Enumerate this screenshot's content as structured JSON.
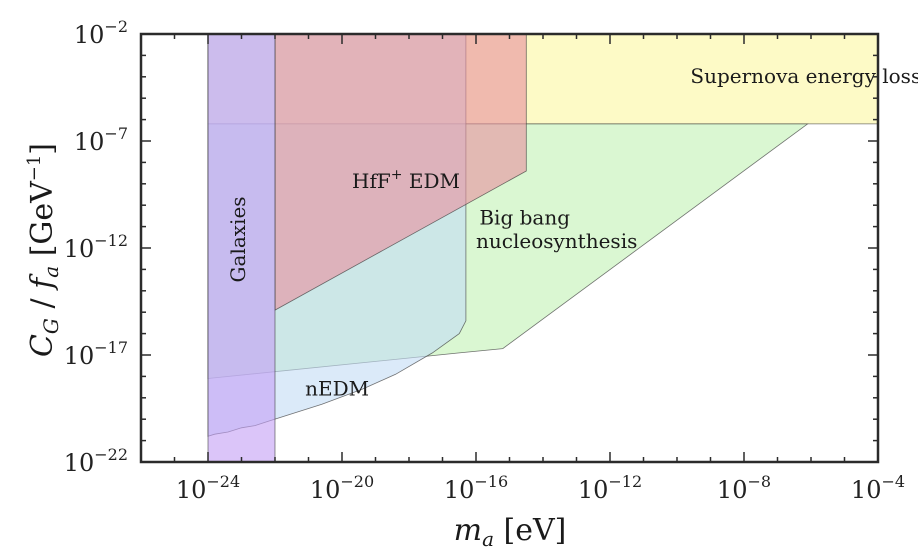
{
  "chart_data": {
    "type": "area",
    "x_scale": "log",
    "y_scale": "log",
    "xlim_log10": [
      -26,
      -4
    ],
    "ylim_log10": [
      -22,
      -2
    ],
    "x_ticks": [
      {
        "base": "10",
        "exp": "−24",
        "log": -24
      },
      {
        "base": "10",
        "exp": "−20",
        "log": -20
      },
      {
        "base": "10",
        "exp": "−16",
        "log": -16
      },
      {
        "base": "10",
        "exp": "−12",
        "log": -12
      },
      {
        "base": "10",
        "exp": "−8",
        "log": -8
      },
      {
        "base": "10",
        "exp": "−4",
        "log": -4
      }
    ],
    "y_ticks": [
      {
        "base": "10",
        "exp": "−2",
        "log": -2
      },
      {
        "base": "10",
        "exp": "−7",
        "log": -7
      },
      {
        "base": "10",
        "exp": "−12",
        "log": -12
      },
      {
        "base": "10",
        "exp": "−17",
        "log": -17
      },
      {
        "base": "10",
        "exp": "−22",
        "log": -22
      }
    ],
    "xlabel": "m_a [eV]",
    "ylabel": "C_G / f_a [GeV^−1]",
    "regions": [
      {
        "name": "Supernova energy loss",
        "color": "#fbf6a0",
        "points_log10": [
          [
            -24,
            -6.2
          ],
          [
            -4,
            -6.2
          ],
          [
            -4,
            -2
          ],
          [
            -24,
            -2
          ]
        ]
      },
      {
        "name": "Big bang nucleosynthesis",
        "color": "#c2f2b4",
        "points_log10": [
          [
            -24,
            -18.1
          ],
          [
            -16.5,
            -16.9
          ],
          [
            -15.2,
            -16.7
          ],
          [
            -6.1,
            -6.2
          ],
          [
            -24,
            -6.2
          ]
        ]
      },
      {
        "name": "nEDM",
        "color": "#c3dcf5",
        "points_log10": [
          [
            -24,
            -20.8
          ],
          [
            -23.8,
            -20.7
          ],
          [
            -23.4,
            -20.6
          ],
          [
            -23.0,
            -20.4
          ],
          [
            -22.6,
            -20.3
          ],
          [
            -22.2,
            -20.1
          ],
          [
            -21.6,
            -19.8
          ],
          [
            -20.6,
            -19.3
          ],
          [
            -19.4,
            -18.6
          ],
          [
            -18.4,
            -17.9
          ],
          [
            -17.3,
            -16.9
          ],
          [
            -16.5,
            -16.0
          ],
          [
            -16.3,
            -15.4
          ],
          [
            -16.3,
            -2
          ],
          [
            -24,
            -2
          ]
        ]
      },
      {
        "name": "HfF+ EDM",
        "color": "#e7909f",
        "points_log10": [
          [
            -22,
            -14.9
          ],
          [
            -14.5,
            -8.4
          ],
          [
            -14.5,
            -2
          ],
          [
            -22,
            -2
          ]
        ]
      },
      {
        "name": "Galaxies",
        "color": "#c39ef5",
        "points_log10": [
          [
            -24,
            -22
          ],
          [
            -22,
            -22
          ],
          [
            -22,
            -2
          ],
          [
            -24,
            -2
          ]
        ]
      }
    ],
    "labels": [
      {
        "text": "Supernova energy loss",
        "at_log10": [
          -9.6,
          -4.3
        ]
      },
      {
        "text": "HfF",
        "sup": "+",
        "tail": " EDM",
        "at_log10": [
          -19.7,
          -9.2
        ]
      },
      {
        "text": "Big bang",
        "at_log10": [
          -15.9,
          -10.9
        ]
      },
      {
        "text": "nucleosynthesis",
        "at_log10": [
          -16.0,
          -12.0
        ]
      },
      {
        "text": "nEDM",
        "at_log10": [
          -21.1,
          -18.9
        ]
      },
      {
        "text": "Galaxies",
        "at_log10": [
          -22.9,
          -11.6
        ],
        "rotate": -90
      }
    ]
  }
}
